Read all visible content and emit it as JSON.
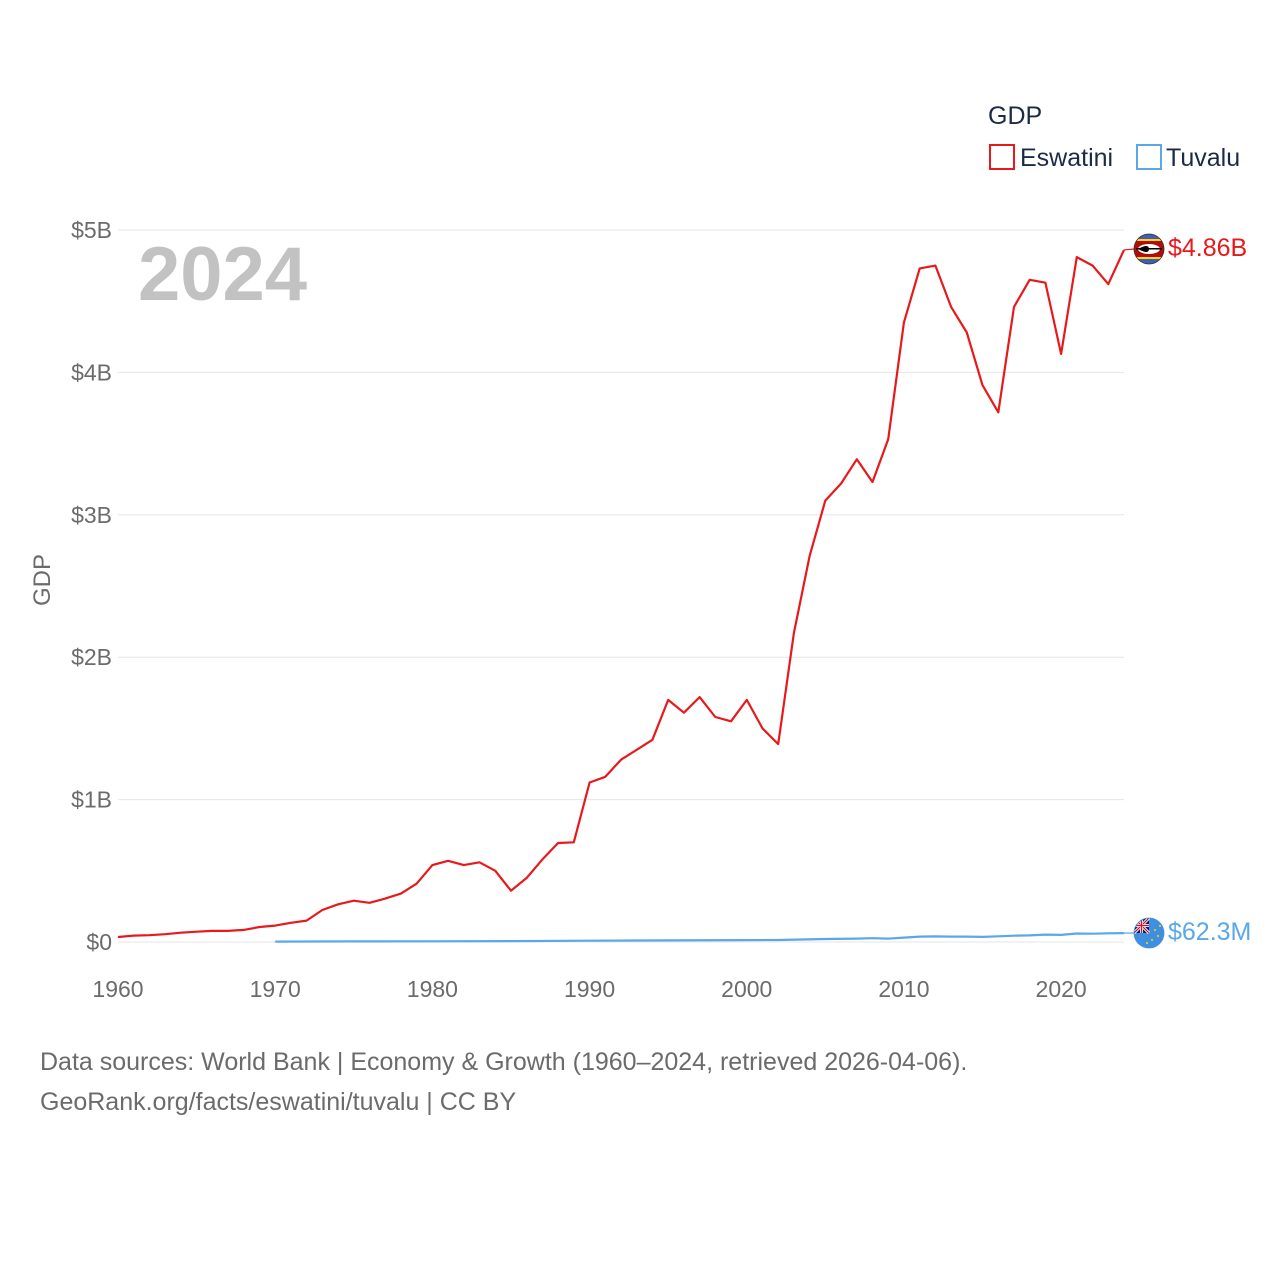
{
  "chart_data": {
    "type": "line",
    "ylabel": "GDP",
    "year_watermark": "2024",
    "legend_title": "GDP",
    "xlim": [
      1960,
      2024
    ],
    "ylim": [
      0,
      5
    ],
    "y_unit": "billion USD",
    "x_ticks": [
      1960,
      1970,
      1980,
      1990,
      2000,
      2010,
      2020
    ],
    "x_tick_labels": [
      "1960",
      "1970",
      "1980",
      "1990",
      "2000",
      "2010",
      "2020"
    ],
    "y_ticks": [
      0,
      1,
      2,
      3,
      4,
      5
    ],
    "y_tick_labels": [
      "$0",
      "$1B",
      "$2B",
      "$3B",
      "$4B",
      "$5B"
    ],
    "series": [
      {
        "name": "Eswatini",
        "color": "#e8191b",
        "end_label": "$4.86B",
        "flag_icon": "eswatini-flag-icon",
        "x": [
          1960,
          1961,
          1962,
          1963,
          1964,
          1965,
          1966,
          1967,
          1968,
          1969,
          1970,
          1971,
          1972,
          1973,
          1974,
          1975,
          1976,
          1977,
          1978,
          1979,
          1980,
          1981,
          1982,
          1983,
          1984,
          1985,
          1986,
          1987,
          1988,
          1989,
          1990,
          1991,
          1992,
          1993,
          1994,
          1995,
          1996,
          1997,
          1998,
          1999,
          2000,
          2001,
          2002,
          2003,
          2004,
          2005,
          2006,
          2007,
          2008,
          2009,
          2010,
          2011,
          2012,
          2013,
          2014,
          2015,
          2016,
          2017,
          2018,
          2019,
          2020,
          2021,
          2022,
          2023,
          2024
        ],
        "values": [
          0.035,
          0.045,
          0.048,
          0.055,
          0.065,
          0.072,
          0.078,
          0.078,
          0.085,
          0.105,
          0.115,
          0.135,
          0.15,
          0.225,
          0.265,
          0.29,
          0.275,
          0.305,
          0.34,
          0.41,
          0.54,
          0.57,
          0.54,
          0.56,
          0.5,
          0.36,
          0.45,
          0.58,
          0.695,
          0.7,
          1.12,
          1.16,
          1.28,
          1.35,
          1.42,
          1.7,
          1.61,
          1.72,
          1.58,
          1.55,
          1.7,
          1.5,
          1.39,
          2.17,
          2.71,
          3.1,
          3.22,
          3.39,
          3.23,
          3.53,
          4.35,
          4.73,
          4.75,
          4.46,
          4.28,
          3.91,
          3.72,
          4.46,
          4.65,
          4.63,
          4.13,
          4.81,
          4.75,
          4.62,
          4.86
        ]
      },
      {
        "name": "Tuvalu",
        "color": "#5aa8e8",
        "end_label": "$62.3M",
        "flag_icon": "tuvalu-flag-icon",
        "x": [
          1970,
          1975,
          1980,
          1985,
          1990,
          1995,
          2000,
          2002,
          2005,
          2007,
          2008,
          2009,
          2010,
          2011,
          2012,
          2013,
          2014,
          2015,
          2016,
          2017,
          2018,
          2019,
          2020,
          2021,
          2022,
          2023,
          2024
        ],
        "values": [
          0.003,
          0.004,
          0.005,
          0.006,
          0.009,
          0.011,
          0.013,
          0.014,
          0.021,
          0.024,
          0.027,
          0.024,
          0.031,
          0.038,
          0.039,
          0.038,
          0.038,
          0.036,
          0.04,
          0.044,
          0.046,
          0.052,
          0.05,
          0.06,
          0.058,
          0.061,
          0.0623
        ]
      }
    ]
  },
  "source": {
    "line1": "Data sources: World Bank | Economy & Growth (1960–2024, retrieved 2026-04-06).",
    "line2": "GeoRank.org/facts/eswatini/tuvalu | CC BY"
  }
}
